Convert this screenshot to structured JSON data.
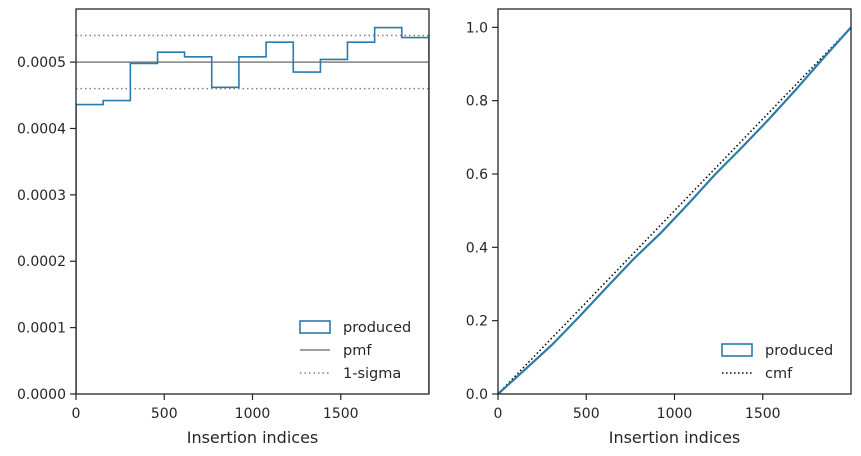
{
  "chart_data": [
    {
      "type": "histogram",
      "xlabel": "Insertion indices",
      "ylabel": "",
      "xlim": [
        0,
        2000
      ],
      "ylim": [
        0,
        0.00058
      ],
      "xticks": [
        0,
        500,
        1000,
        1500
      ],
      "yticks": [
        0,
        0.0001,
        0.0002,
        0.0003,
        0.0004,
        0.0005
      ],
      "ytick_labels": [
        "0.0000",
        "0.0001",
        "0.0002",
        "0.0003",
        "0.0004",
        "0.0005"
      ],
      "grid": false,
      "legend_position": "lower-right",
      "legend": [
        "produced",
        "pmf",
        "1-sigma"
      ],
      "series": [
        {
          "name": "produced",
          "style": "step",
          "color": "#2b7bab",
          "bin_edges": [
            0,
            154,
            308,
            462,
            615,
            769,
            923,
            1077,
            1231,
            1385,
            1538,
            1692,
            1846,
            2000
          ],
          "values": [
            0.000436,
            0.000442,
            0.000498,
            0.000515,
            0.000508,
            0.000462,
            0.000508,
            0.00053,
            0.000485,
            0.000504,
            0.00053,
            0.000552,
            0.000537
          ]
        },
        {
          "name": "pmf",
          "style": "hline",
          "color": "#808080",
          "y": 0.0005
        },
        {
          "name": "1-sigma",
          "style": "hline-dotted",
          "color": "#808080",
          "y": [
            0.00046,
            0.00054
          ]
        }
      ]
    },
    {
      "type": "line",
      "xlabel": "Insertion indices",
      "ylabel": "",
      "xlim": [
        0,
        2000
      ],
      "ylim": [
        0,
        1.05
      ],
      "xticks": [
        0,
        500,
        1000,
        1500
      ],
      "yticks": [
        0,
        0.2,
        0.4,
        0.6,
        0.8,
        1.0
      ],
      "ytick_labels": [
        "0.0",
        "0.2",
        "0.4",
        "0.6",
        "0.8",
        "1.0"
      ],
      "grid": false,
      "legend_position": "lower-right",
      "legend": [
        "produced",
        "cmf"
      ],
      "series": [
        {
          "name": "produced",
          "style": "cumulative-step",
          "color": "#2b7bab",
          "source": "cumulative sum of the left-panel histogram"
        },
        {
          "name": "cmf",
          "style": "dotted",
          "color": "#000000",
          "x": [
            0,
            2000
          ],
          "y": [
            0,
            1.0
          ]
        }
      ]
    }
  ]
}
